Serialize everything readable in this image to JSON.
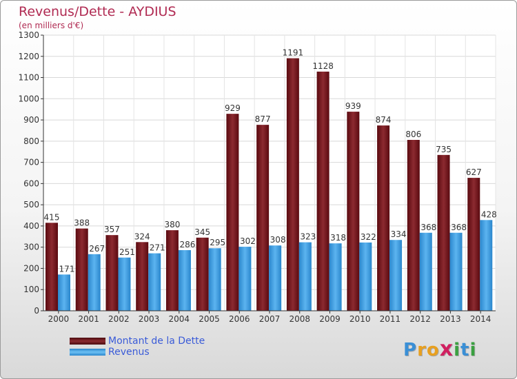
{
  "chart_data": {
    "type": "bar",
    "title": "Revenus/Dette - AYDIUS",
    "subtitle": "(en milliers d'€)",
    "categories": [
      "2000",
      "2001",
      "2002",
      "2003",
      "2004",
      "2005",
      "2006",
      "2007",
      "2008",
      "2009",
      "2010",
      "2011",
      "2012",
      "2013",
      "2014"
    ],
    "series": [
      {
        "name": "Montant de la Dette",
        "color": "#7a1a1f",
        "values": [
          415,
          388,
          357,
          324,
          380,
          345,
          929,
          877,
          1191,
          1128,
          939,
          874,
          806,
          735,
          627
        ]
      },
      {
        "name": "Revenus",
        "color": "#3d9ee0",
        "values": [
          171,
          267,
          251,
          271,
          286,
          295,
          302,
          308,
          323,
          318,
          322,
          334,
          368,
          368,
          428
        ]
      }
    ],
    "ylim": [
      0,
      1300
    ],
    "yticks": [
      0,
      100,
      200,
      300,
      400,
      500,
      600,
      700,
      800,
      900,
      1000,
      1100,
      1200,
      1300
    ],
    "grid": true,
    "legend_position": "bottom-left"
  },
  "brand": {
    "letters": [
      "P",
      "r",
      "o",
      "x",
      "i",
      "t",
      "i"
    ],
    "colors": [
      "#3a8fd6",
      "#e8a020",
      "#e8a020",
      "#d02060",
      "#3aa040",
      "#3a8fd6",
      "#3aa040"
    ]
  }
}
